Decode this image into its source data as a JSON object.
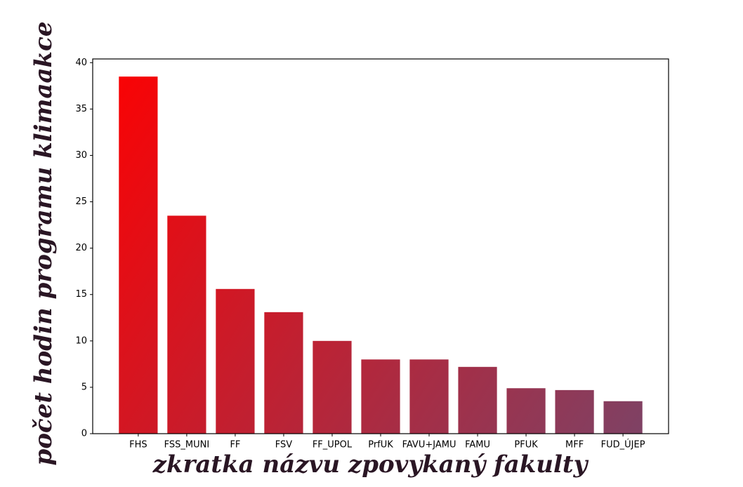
{
  "chart_data": {
    "type": "bar",
    "xlabel": "zkratka názvu zpovykaný fakulty",
    "ylabel": "počet hodin programu klimaakce",
    "categories": [
      "FHS",
      "FSS_MUNI",
      "FF",
      "FSV",
      "FF_UPOL",
      "PrfUK",
      "FAVU+JAMU",
      "FAMU",
      "PFUK",
      "MFF",
      "FUD_ÚJEP"
    ],
    "values": [
      38.5,
      23.5,
      15.6,
      13.1,
      10,
      8,
      8,
      7.2,
      4.9,
      4.7,
      3.5
    ],
    "gradient_colors": [
      "#ff0000",
      "#7a4468"
    ],
    "ylim": [
      0,
      40.4
    ],
    "yticks": [
      0,
      5,
      10,
      15,
      20,
      25,
      30,
      35,
      40
    ]
  }
}
